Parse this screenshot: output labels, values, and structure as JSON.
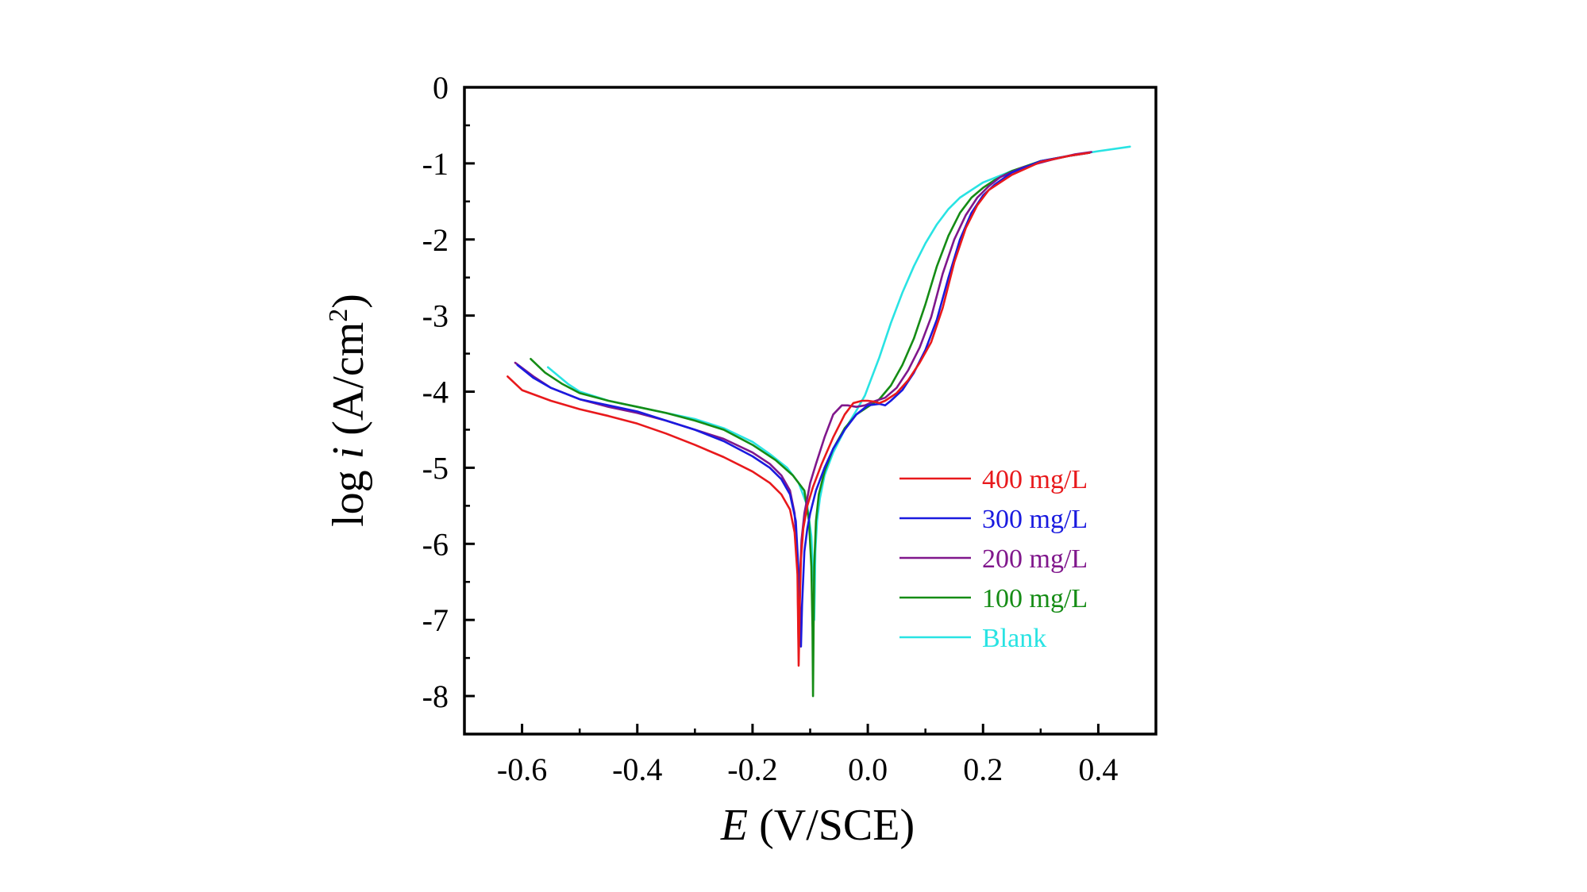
{
  "chart_data": {
    "type": "line",
    "title": "",
    "xlabel_italic": "E",
    "xlabel_rest": " (V/SCE)",
    "ylabel_pre": "log ",
    "ylabel_italic": "i",
    "ylabel_post": " (A/cm",
    "ylabel_sup": "2",
    "ylabel_end": ")",
    "xlim": [
      -0.7,
      0.5
    ],
    "ylim": [
      -8.5,
      0
    ],
    "xticks": [
      -0.6,
      -0.4,
      -0.2,
      0.0,
      0.2,
      0.4
    ],
    "xtick_labels": [
      "-0.6",
      "-0.4",
      "-0.2",
      "0.0",
      "0.2",
      "0.4"
    ],
    "yticks": [
      0,
      -1,
      -2,
      -3,
      -4,
      -5,
      -6,
      -7,
      -8
    ],
    "ytick_labels": [
      "0",
      "-1",
      "-2",
      "-3",
      "-4",
      "-5",
      "-6",
      "-7",
      "-8"
    ],
    "legend_position": "bottom-right",
    "series": [
      {
        "name": "400 mg/L",
        "color": "#e8191c",
        "x": [
          -0.625,
          -0.6,
          -0.55,
          -0.5,
          -0.45,
          -0.4,
          -0.35,
          -0.3,
          -0.25,
          -0.2,
          -0.17,
          -0.15,
          -0.135,
          -0.127,
          -0.122,
          -0.12,
          -0.118,
          -0.116,
          -0.112,
          -0.105,
          -0.095,
          -0.08,
          -0.06,
          -0.04,
          -0.025,
          -0.01,
          0.0,
          0.01,
          0.02,
          0.03,
          0.05,
          0.07,
          0.09,
          0.11,
          0.13,
          0.15,
          0.17,
          0.19,
          0.21,
          0.25,
          0.3,
          0.35,
          0.385
        ],
        "y": [
          -3.8,
          -3.98,
          -4.12,
          -4.23,
          -4.32,
          -4.42,
          -4.55,
          -4.7,
          -4.86,
          -5.05,
          -5.2,
          -5.35,
          -5.55,
          -5.85,
          -6.4,
          -7.6,
          -6.8,
          -6.2,
          -5.8,
          -5.5,
          -5.25,
          -4.95,
          -4.6,
          -4.3,
          -4.15,
          -4.12,
          -4.12,
          -4.13,
          -4.15,
          -4.12,
          -4.02,
          -3.85,
          -3.62,
          -3.35,
          -2.9,
          -2.3,
          -1.85,
          -1.55,
          -1.35,
          -1.15,
          -0.98,
          -0.9,
          -0.86
        ]
      },
      {
        "name": "300 mg/L",
        "color": "#1a1adf",
        "x": [
          -0.608,
          -0.58,
          -0.55,
          -0.5,
          -0.45,
          -0.4,
          -0.35,
          -0.3,
          -0.25,
          -0.2,
          -0.17,
          -0.15,
          -0.135,
          -0.125,
          -0.12,
          -0.117,
          -0.116,
          -0.114,
          -0.11,
          -0.105,
          -0.1,
          -0.09,
          -0.075,
          -0.06,
          -0.04,
          -0.02,
          0.0,
          0.02,
          0.03,
          0.04,
          0.06,
          0.08,
          0.1,
          0.12,
          0.14,
          0.16,
          0.18,
          0.2,
          0.22,
          0.25,
          0.3,
          0.35,
          0.385
        ],
        "y": [
          -3.65,
          -3.82,
          -3.95,
          -4.1,
          -4.18,
          -4.26,
          -4.38,
          -4.5,
          -4.65,
          -4.85,
          -5.0,
          -5.15,
          -5.35,
          -5.7,
          -6.4,
          -7.0,
          -7.35,
          -6.8,
          -6.1,
          -5.8,
          -5.6,
          -5.3,
          -5.0,
          -4.75,
          -4.5,
          -4.3,
          -4.18,
          -4.16,
          -4.18,
          -4.12,
          -3.98,
          -3.75,
          -3.45,
          -3.05,
          -2.5,
          -2.0,
          -1.65,
          -1.42,
          -1.28,
          -1.12,
          -0.97,
          -0.9,
          -0.86
        ]
      },
      {
        "name": "200 mg/L",
        "color": "#80178c",
        "x": [
          -0.612,
          -0.58,
          -0.55,
          -0.5,
          -0.45,
          -0.4,
          -0.35,
          -0.3,
          -0.25,
          -0.2,
          -0.17,
          -0.15,
          -0.135,
          -0.127,
          -0.122,
          -0.12,
          -0.118,
          -0.115,
          -0.11,
          -0.1,
          -0.09,
          -0.075,
          -0.06,
          -0.045,
          -0.035,
          -0.02,
          -0.005,
          0.01,
          0.03,
          0.05,
          0.07,
          0.09,
          0.11,
          0.13,
          0.15,
          0.17,
          0.19,
          0.21,
          0.23,
          0.27,
          0.32,
          0.36,
          0.388
        ],
        "y": [
          -3.62,
          -3.8,
          -3.95,
          -4.1,
          -4.2,
          -4.28,
          -4.38,
          -4.5,
          -4.62,
          -4.8,
          -4.95,
          -5.1,
          -5.3,
          -5.6,
          -6.2,
          -7.45,
          -6.5,
          -5.95,
          -5.6,
          -5.2,
          -4.95,
          -4.6,
          -4.3,
          -4.18,
          -4.18,
          -4.2,
          -4.18,
          -4.13,
          -4.08,
          -3.95,
          -3.72,
          -3.42,
          -3.02,
          -2.45,
          -2.0,
          -1.68,
          -1.45,
          -1.3,
          -1.18,
          -1.05,
          -0.95,
          -0.88,
          -0.85
        ]
      },
      {
        "name": "100 mg/L",
        "color": "#158c15",
        "x": [
          -0.585,
          -0.56,
          -0.53,
          -0.5,
          -0.45,
          -0.4,
          -0.35,
          -0.3,
          -0.25,
          -0.2,
          -0.16,
          -0.13,
          -0.11,
          -0.102,
          -0.098,
          -0.096,
          -0.095,
          -0.094,
          -0.093,
          -0.09,
          -0.085,
          -0.075,
          -0.06,
          -0.04,
          -0.02,
          0.0,
          0.02,
          0.04,
          0.06,
          0.08,
          0.1,
          0.12,
          0.14,
          0.16,
          0.18,
          0.2,
          0.22,
          0.25,
          0.3,
          0.35,
          0.385
        ],
        "y": [
          -3.57,
          -3.75,
          -3.9,
          -4.02,
          -4.12,
          -4.2,
          -4.28,
          -4.38,
          -4.5,
          -4.7,
          -4.9,
          -5.1,
          -5.3,
          -5.7,
          -6.3,
          -7.1,
          -8.0,
          -7.0,
          -6.3,
          -5.7,
          -5.35,
          -5.05,
          -4.75,
          -4.48,
          -4.3,
          -4.2,
          -4.1,
          -3.92,
          -3.65,
          -3.3,
          -2.85,
          -2.35,
          -1.95,
          -1.65,
          -1.45,
          -1.32,
          -1.22,
          -1.1,
          -0.97,
          -0.9,
          -0.86
        ]
      },
      {
        "name": "Blank",
        "color": "#29e3e3",
        "x": [
          -0.555,
          -0.52,
          -0.5,
          -0.45,
          -0.4,
          -0.35,
          -0.3,
          -0.25,
          -0.2,
          -0.17,
          -0.14,
          -0.12,
          -0.105,
          -0.098,
          -0.094,
          -0.093,
          -0.092,
          -0.091,
          -0.088,
          -0.083,
          -0.075,
          -0.06,
          -0.04,
          -0.02,
          -0.005,
          0.0,
          0.02,
          0.04,
          0.06,
          0.08,
          0.1,
          0.12,
          0.14,
          0.16,
          0.18,
          0.2,
          0.25,
          0.3,
          0.35,
          0.4,
          0.455
        ],
        "y": [
          -3.68,
          -3.9,
          -4.0,
          -4.12,
          -4.2,
          -4.28,
          -4.36,
          -4.48,
          -4.66,
          -4.82,
          -5.0,
          -5.2,
          -5.5,
          -5.9,
          -6.5,
          -7.0,
          -6.6,
          -6.1,
          -5.7,
          -5.4,
          -5.1,
          -4.8,
          -4.5,
          -4.25,
          -4.05,
          -3.95,
          -3.55,
          -3.1,
          -2.7,
          -2.35,
          -2.05,
          -1.8,
          -1.6,
          -1.45,
          -1.35,
          -1.25,
          -1.1,
          -0.98,
          -0.9,
          -0.84,
          -0.78
        ]
      }
    ]
  }
}
